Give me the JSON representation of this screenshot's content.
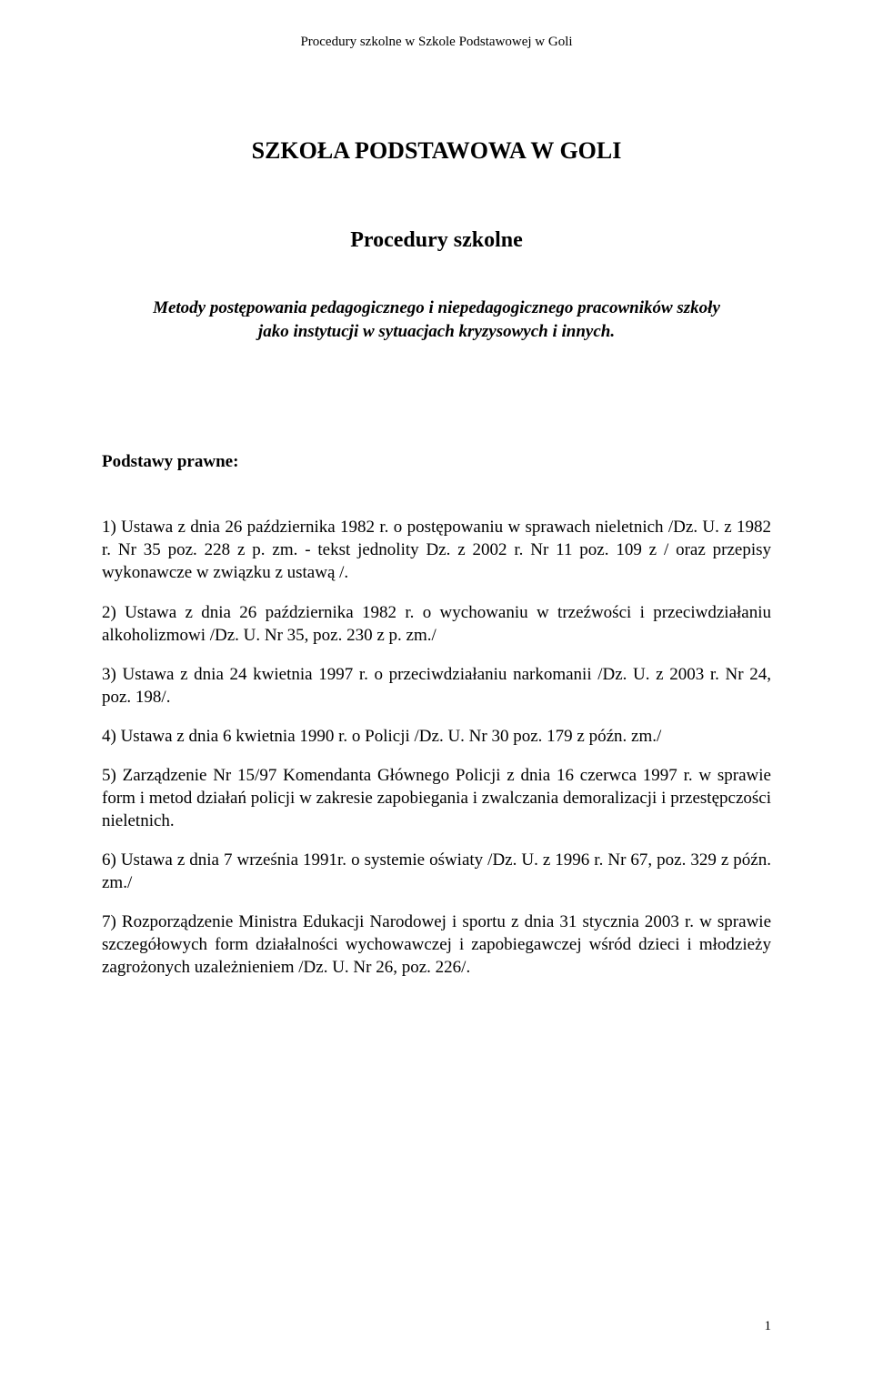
{
  "colors": {
    "background": "#ffffff",
    "text": "#000000"
  },
  "typography": {
    "family": "Times New Roman",
    "header_size_pt": 11,
    "title_size_pt": 20,
    "subtitle_size_pt": 18,
    "body_size_pt": 14
  },
  "header": {
    "running": "Procedury szkolne w Szkole Podstawowej w Goli"
  },
  "title": "SZKOŁA PODSTAWOWA W GOLI",
  "subtitle": "Procedury szkolne",
  "methods": {
    "line1": "Metody postępowania pedagogicznego i  niepedagogicznego pracowników szkoły",
    "line2": "jako instytucji w sytuacjach kryzysowych i innych."
  },
  "section_heading": "Podstawy prawne:",
  "items": [
    "1)  Ustawa z dnia 26 października 1982 r. o postępowaniu w sprawach nieletnich /Dz. U. z 1982 r. Nr 35 poz. 228 z p. zm. - tekst jednolity Dz. z 2002 r. Nr 11 poz. 109 z / oraz przepisy wykonawcze w związku z ustawą /.",
    "2) Ustawa z dnia 26 października 1982 r. o wychowaniu w trzeźwości i przeciwdziałaniu alkoholizmowi /Dz. U. Nr 35, poz. 230 z p. zm./",
    "3) Ustawa z dnia 24 kwietnia 1997 r. o przeciwdziałaniu narkomanii /Dz. U. z 2003 r. Nr 24, poz. 198/.",
    "4) Ustawa z dnia 6 kwietnia 1990 r. o Policji /Dz. U. Nr 30 poz. 179 z późn. zm./",
    "5) Zarządzenie Nr 15/97 Komendanta Głównego Policji z dnia 16 czerwca 1997 r. w sprawie form i metod działań policji w zakresie zapobiegania i zwalczania demoralizacji i przestępczości nieletnich.",
    "6) Ustawa z dnia 7 września 1991r. o systemie oświaty /Dz. U. z 1996 r. Nr 67, poz. 329 z późn. zm./",
    "7) Rozporządzenie Ministra Edukacji Narodowej i sportu z dnia 31 stycznia 2003 r. w sprawie szczegółowych form działalności wychowawczej i zapobiegawczej wśród dzieci i młodzieży zagrożonych uzależnieniem /Dz. U. Nr 26, poz. 226/."
  ],
  "page_number": "1"
}
